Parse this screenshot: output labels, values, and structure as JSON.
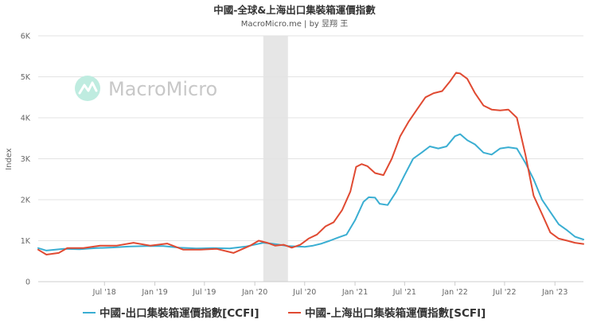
{
  "chart_data": {
    "type": "line",
    "title": "中國-全球&上海出口集裝箱運價指數",
    "subtitle": "MacroMicro.me | by 昱翔 王",
    "watermark": "MacroMicro",
    "ylabel": "Index",
    "ylim": [
      0,
      6000
    ],
    "y_ticks": [
      {
        "value": 0,
        "label": "0"
      },
      {
        "value": 1000,
        "label": "1K"
      },
      {
        "value": 2000,
        "label": "2K"
      },
      {
        "value": 3000,
        "label": "3K"
      },
      {
        "value": 4000,
        "label": "4K"
      },
      {
        "value": 5000,
        "label": "5K"
      },
      {
        "value": 6000,
        "label": "6K"
      }
    ],
    "xlim": [
      "2017-11-01",
      "2023-04-15"
    ],
    "x_ticks": [
      {
        "value": "2018-07-01",
        "label": "Jul '18"
      },
      {
        "value": "2019-01-01",
        "label": "Jan '19"
      },
      {
        "value": "2019-07-01",
        "label": "Jul '19"
      },
      {
        "value": "2020-01-01",
        "label": "Jan '20"
      },
      {
        "value": "2020-07-01",
        "label": "Jul '20"
      },
      {
        "value": "2021-01-01",
        "label": "Jan '21"
      },
      {
        "value": "2021-07-01",
        "label": "Jul '21"
      },
      {
        "value": "2022-01-01",
        "label": "Jan '22"
      },
      {
        "value": "2022-07-01",
        "label": "Jul '22"
      },
      {
        "value": "2023-01-01",
        "label": "Jan '23"
      }
    ],
    "shaded_ranges": [
      {
        "start": "2020-02-01",
        "end": "2020-05-01"
      }
    ],
    "grid": "horizontal",
    "legend_position": "bottom",
    "series": [
      {
        "name": "中國-出口集裝箱運價指數[CCFI]",
        "color": "#3aaed2",
        "points": [
          [
            "2017-11-01",
            820
          ],
          [
            "2017-12-01",
            760
          ],
          [
            "2018-02-01",
            800
          ],
          [
            "2018-04-01",
            790
          ],
          [
            "2018-06-01",
            820
          ],
          [
            "2018-08-01",
            835
          ],
          [
            "2018-10-01",
            860
          ],
          [
            "2018-12-01",
            870
          ],
          [
            "2019-02-01",
            870
          ],
          [
            "2019-04-01",
            830
          ],
          [
            "2019-06-01",
            810
          ],
          [
            "2019-08-01",
            820
          ],
          [
            "2019-10-01",
            810
          ],
          [
            "2019-12-01",
            860
          ],
          [
            "2020-02-01",
            950
          ],
          [
            "2020-03-01",
            930
          ],
          [
            "2020-04-01",
            900
          ],
          [
            "2020-05-01",
            870
          ],
          [
            "2020-06-01",
            860
          ],
          [
            "2020-07-01",
            850
          ],
          [
            "2020-08-01",
            880
          ],
          [
            "2020-09-01",
            930
          ],
          [
            "2020-10-01",
            1000
          ],
          [
            "2020-11-01",
            1080
          ],
          [
            "2020-12-01",
            1150
          ],
          [
            "2021-01-01",
            1500
          ],
          [
            "2021-02-01",
            1950
          ],
          [
            "2021-02-20",
            2060
          ],
          [
            "2021-03-15",
            2050
          ],
          [
            "2021-04-01",
            1900
          ],
          [
            "2021-04-30",
            1870
          ],
          [
            "2021-06-01",
            2200
          ],
          [
            "2021-07-01",
            2600
          ],
          [
            "2021-08-01",
            3000
          ],
          [
            "2021-09-01",
            3150
          ],
          [
            "2021-10-01",
            3300
          ],
          [
            "2021-11-01",
            3250
          ],
          [
            "2021-12-01",
            3300
          ],
          [
            "2022-01-01",
            3550
          ],
          [
            "2022-01-20",
            3600
          ],
          [
            "2022-02-15",
            3450
          ],
          [
            "2022-03-15",
            3350
          ],
          [
            "2022-04-15",
            3150
          ],
          [
            "2022-05-15",
            3100
          ],
          [
            "2022-06-15",
            3250
          ],
          [
            "2022-07-15",
            3280
          ],
          [
            "2022-08-15",
            3250
          ],
          [
            "2022-09-15",
            2900
          ],
          [
            "2022-10-15",
            2500
          ],
          [
            "2022-11-15",
            2000
          ],
          [
            "2022-12-15",
            1700
          ],
          [
            "2023-01-15",
            1400
          ],
          [
            "2023-02-15",
            1250
          ],
          [
            "2023-03-15",
            1100
          ],
          [
            "2023-04-15",
            1030
          ]
        ]
      },
      {
        "name": "中國-上海出口集裝箱運價指數[SCFI]",
        "color": "#e04a32",
        "points": [
          [
            "2017-11-01",
            780
          ],
          [
            "2017-12-01",
            660
          ],
          [
            "2018-01-15",
            700
          ],
          [
            "2018-02-15",
            820
          ],
          [
            "2018-04-15",
            820
          ],
          [
            "2018-06-15",
            880
          ],
          [
            "2018-08-15",
            880
          ],
          [
            "2018-10-15",
            950
          ],
          [
            "2018-12-15",
            880
          ],
          [
            "2019-02-15",
            930
          ],
          [
            "2019-04-15",
            780
          ],
          [
            "2019-06-15",
            780
          ],
          [
            "2019-08-15",
            800
          ],
          [
            "2019-10-15",
            700
          ],
          [
            "2019-12-15",
            880
          ],
          [
            "2020-01-15",
            1000
          ],
          [
            "2020-02-15",
            950
          ],
          [
            "2020-03-15",
            880
          ],
          [
            "2020-04-15",
            900
          ],
          [
            "2020-05-15",
            830
          ],
          [
            "2020-06-15",
            900
          ],
          [
            "2020-07-15",
            1050
          ],
          [
            "2020-08-15",
            1150
          ],
          [
            "2020-09-15",
            1350
          ],
          [
            "2020-10-15",
            1450
          ],
          [
            "2020-11-15",
            1750
          ],
          [
            "2020-12-15",
            2200
          ],
          [
            "2021-01-05",
            2800
          ],
          [
            "2021-01-25",
            2870
          ],
          [
            "2021-02-15",
            2820
          ],
          [
            "2021-03-15",
            2650
          ],
          [
            "2021-04-15",
            2600
          ],
          [
            "2021-05-15",
            3000
          ],
          [
            "2021-06-15",
            3550
          ],
          [
            "2021-07-15",
            3900
          ],
          [
            "2021-08-15",
            4200
          ],
          [
            "2021-09-15",
            4500
          ],
          [
            "2021-10-15",
            4600
          ],
          [
            "2021-11-15",
            4650
          ],
          [
            "2021-12-15",
            4900
          ],
          [
            "2022-01-05",
            5100
          ],
          [
            "2022-01-20",
            5080
          ],
          [
            "2022-02-15",
            4950
          ],
          [
            "2022-03-15",
            4600
          ],
          [
            "2022-04-15",
            4300
          ],
          [
            "2022-05-15",
            4200
          ],
          [
            "2022-06-15",
            4180
          ],
          [
            "2022-07-15",
            4200
          ],
          [
            "2022-08-15",
            4000
          ],
          [
            "2022-09-15",
            3100
          ],
          [
            "2022-10-15",
            2100
          ],
          [
            "2022-11-15",
            1650
          ],
          [
            "2022-12-15",
            1200
          ],
          [
            "2023-01-15",
            1050
          ],
          [
            "2023-02-15",
            1000
          ],
          [
            "2023-03-15",
            950
          ],
          [
            "2023-04-15",
            920
          ]
        ]
      }
    ]
  }
}
